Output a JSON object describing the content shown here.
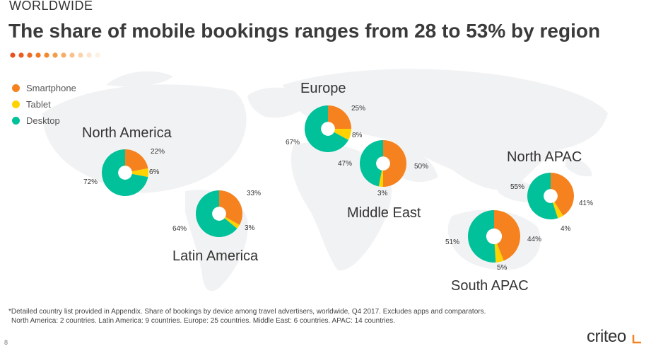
{
  "header": {
    "kicker": "WORLDWIDE",
    "title": "The share of mobile bookings ranges from 28 to 53% by region"
  },
  "legend": [
    {
      "label": "Smartphone",
      "color": "#f5821f"
    },
    {
      "label": "Tablet",
      "color": "#ffd200"
    },
    {
      "label": "Desktop",
      "color": "#00c19a"
    }
  ],
  "chart_data": {
    "type": "pie",
    "series_names": [
      "Smartphone",
      "Tablet",
      "Desktop"
    ],
    "colors": [
      "#f5821f",
      "#ffd200",
      "#00c19a"
    ],
    "regions": [
      {
        "name": "North America",
        "values": [
          22,
          6,
          72
        ],
        "labels": [
          "22%",
          "6%",
          "72%"
        ]
      },
      {
        "name": "Latin America",
        "values": [
          33,
          3,
          64
        ],
        "labels": [
          "33%",
          "3%",
          "64%"
        ]
      },
      {
        "name": "Europe",
        "values": [
          25,
          8,
          67
        ],
        "labels": [
          "25%",
          "8%",
          "67%"
        ]
      },
      {
        "name": "Middle East",
        "values": [
          50,
          3,
          47
        ],
        "labels": [
          "50%",
          "3%",
          "47%"
        ]
      },
      {
        "name": "North APAC",
        "values": [
          41,
          4,
          55
        ],
        "labels": [
          "41%",
          "4%",
          "55%"
        ]
      },
      {
        "name": "South APAC",
        "values": [
          44,
          5,
          51
        ],
        "labels": [
          "44%",
          "5%",
          "51%"
        ]
      }
    ]
  },
  "footnote": {
    "line1": "*Detailed country list provided in Appendix. Share of bookings by device among travel advertisers, worldwide, Q4 2017. Excludes apps and comparators.",
    "line2": "North America: 2 countries. Latin America: 9 countries. Europe: 25 countries. Middle East: 6 countries. APAC: 14 countries."
  },
  "page_number": "8",
  "brand": "criteo"
}
